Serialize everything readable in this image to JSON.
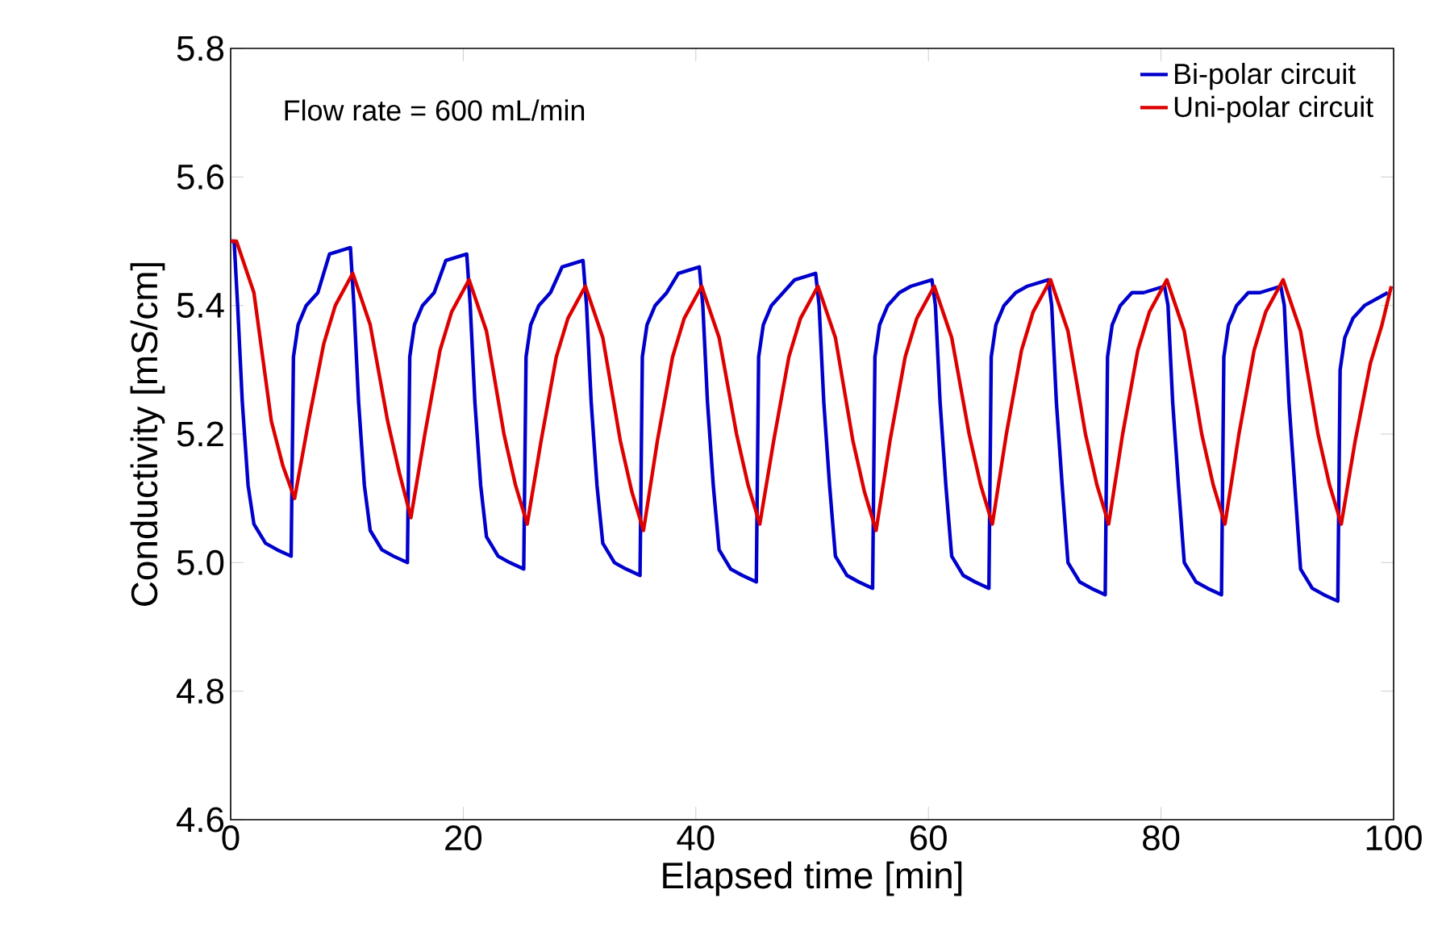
{
  "chart_data": {
    "type": "line",
    "xlabel": "Elapsed time [min]",
    "ylabel": "Conductivity [mS/cm]",
    "annotations": [
      "Flow rate = 600 mL/min"
    ],
    "xlim": [
      0,
      100
    ],
    "ylim": [
      4.6,
      5.8
    ],
    "xticks": [
      0,
      20,
      40,
      60,
      80,
      100
    ],
    "yticks": [
      {
        "value": 4.6,
        "label": "4.6"
      },
      {
        "value": 4.8,
        "label": "4.8"
      },
      {
        "value": 5.0,
        "label": "5.0"
      },
      {
        "value": 5.2,
        "label": "5.2"
      },
      {
        "value": 5.4,
        "label": "5.4"
      },
      {
        "value": 5.6,
        "label": "5.6"
      },
      {
        "value": 5.8,
        "label": "5.8"
      }
    ],
    "grid": false,
    "legend": "top right",
    "marker": "none",
    "line_style": "solid",
    "series": [
      {
        "name": "Bi-polar circuit",
        "color": "#0000cc",
        "x": [
          0,
          0.3,
          0.6,
          1,
          1.5,
          2,
          3,
          4,
          5.2,
          5.4,
          5.8,
          6.5,
          7.5,
          8.5,
          10.3,
          10.6,
          11,
          11.5,
          12,
          13,
          14,
          15.2,
          15.4,
          15.8,
          16.5,
          17.5,
          18.5,
          20.3,
          20.6,
          21,
          21.5,
          22,
          23,
          24,
          25.2,
          25.4,
          25.8,
          26.5,
          27.5,
          28.5,
          30.3,
          30.6,
          31,
          31.5,
          32,
          33,
          34,
          35.2,
          35.4,
          35.8,
          36.5,
          37.5,
          38.5,
          40.3,
          40.6,
          41,
          41.5,
          42,
          43,
          44,
          45.2,
          45.4,
          45.8,
          46.5,
          47.5,
          48.5,
          50.3,
          50.6,
          51,
          51.5,
          52,
          53,
          54,
          55.2,
          55.4,
          55.8,
          56.5,
          57.5,
          58.5,
          60.3,
          60.6,
          61,
          61.5,
          62,
          63,
          64,
          65.2,
          65.4,
          65.8,
          66.5,
          67.5,
          68.5,
          70.3,
          70.6,
          71,
          71.5,
          72,
          73,
          74,
          75.2,
          75.4,
          75.8,
          76.5,
          77.5,
          78.5,
          80.3,
          80.6,
          81,
          81.5,
          82,
          83,
          84,
          85.2,
          85.4,
          85.8,
          86.5,
          87.5,
          88.5,
          90.3,
          90.6,
          91,
          91.5,
          92,
          93,
          94,
          95.2,
          95.4,
          95.8,
          96.5,
          97.5,
          98.5,
          99.5
        ],
        "values": [
          5.5,
          5.5,
          5.4,
          5.25,
          5.12,
          5.06,
          5.03,
          5.02,
          5.01,
          5.32,
          5.37,
          5.4,
          5.42,
          5.48,
          5.49,
          5.4,
          5.25,
          5.12,
          5.05,
          5.02,
          5.01,
          5.0,
          5.32,
          5.37,
          5.4,
          5.42,
          5.47,
          5.48,
          5.4,
          5.25,
          5.12,
          5.04,
          5.01,
          5.0,
          4.99,
          5.32,
          5.37,
          5.4,
          5.42,
          5.46,
          5.47,
          5.4,
          5.25,
          5.12,
          5.03,
          5.0,
          4.99,
          4.98,
          5.32,
          5.37,
          5.4,
          5.42,
          5.45,
          5.46,
          5.4,
          5.25,
          5.12,
          5.02,
          4.99,
          4.98,
          4.97,
          5.32,
          5.37,
          5.4,
          5.42,
          5.44,
          5.45,
          5.4,
          5.25,
          5.12,
          5.01,
          4.98,
          4.97,
          4.96,
          5.32,
          5.37,
          5.4,
          5.42,
          5.43,
          5.44,
          5.4,
          5.25,
          5.12,
          5.01,
          4.98,
          4.97,
          4.96,
          5.32,
          5.37,
          5.4,
          5.42,
          5.43,
          5.44,
          5.4,
          5.25,
          5.12,
          5.0,
          4.97,
          4.96,
          4.95,
          5.32,
          5.37,
          5.4,
          5.42,
          5.42,
          5.43,
          5.4,
          5.25,
          5.12,
          5.0,
          4.97,
          4.96,
          4.95,
          5.32,
          5.37,
          5.4,
          5.42,
          5.42,
          5.43,
          5.4,
          5.25,
          5.12,
          4.99,
          4.96,
          4.95,
          4.94,
          5.3,
          5.35,
          5.38,
          5.4,
          5.41,
          5.42
        ]
      },
      {
        "name": "Uni-polar circuit",
        "color": "#dd0000",
        "x": [
          0,
          0.5,
          2,
          3.5,
          4.5,
          5.5,
          6.7,
          8,
          9,
          10.5,
          12,
          13.5,
          14.5,
          15.5,
          16.7,
          18,
          19,
          20.5,
          22,
          23.5,
          24.5,
          25.5,
          26.7,
          28,
          29,
          30.5,
          32,
          33.5,
          34.5,
          35.5,
          36.7,
          38,
          39,
          40.5,
          42,
          43.5,
          44.5,
          45.5,
          46.7,
          48,
          49,
          50.5,
          52,
          53.5,
          54.5,
          55.5,
          56.7,
          58,
          59,
          60.5,
          62,
          63.5,
          64.5,
          65.5,
          66.7,
          68,
          69,
          70.5,
          72,
          73.5,
          74.5,
          75.5,
          76.7,
          78,
          79,
          80.5,
          82,
          83.5,
          84.5,
          85.5,
          86.7,
          88,
          89,
          90.5,
          92,
          93.5,
          94.5,
          95.5,
          96.7,
          98,
          99,
          99.8
        ],
        "values": [
          5.5,
          5.5,
          5.42,
          5.22,
          5.15,
          5.1,
          5.22,
          5.34,
          5.4,
          5.45,
          5.37,
          5.22,
          5.14,
          5.07,
          5.2,
          5.33,
          5.39,
          5.44,
          5.36,
          5.2,
          5.12,
          5.06,
          5.19,
          5.32,
          5.38,
          5.43,
          5.35,
          5.19,
          5.11,
          5.05,
          5.19,
          5.32,
          5.38,
          5.43,
          5.35,
          5.2,
          5.12,
          5.06,
          5.19,
          5.32,
          5.38,
          5.43,
          5.35,
          5.19,
          5.11,
          5.05,
          5.19,
          5.32,
          5.38,
          5.43,
          5.35,
          5.2,
          5.12,
          5.06,
          5.2,
          5.33,
          5.39,
          5.44,
          5.36,
          5.2,
          5.12,
          5.06,
          5.2,
          5.33,
          5.39,
          5.44,
          5.36,
          5.2,
          5.12,
          5.06,
          5.2,
          5.33,
          5.39,
          5.44,
          5.36,
          5.2,
          5.12,
          5.06,
          5.19,
          5.31,
          5.37,
          5.43
        ]
      }
    ]
  }
}
